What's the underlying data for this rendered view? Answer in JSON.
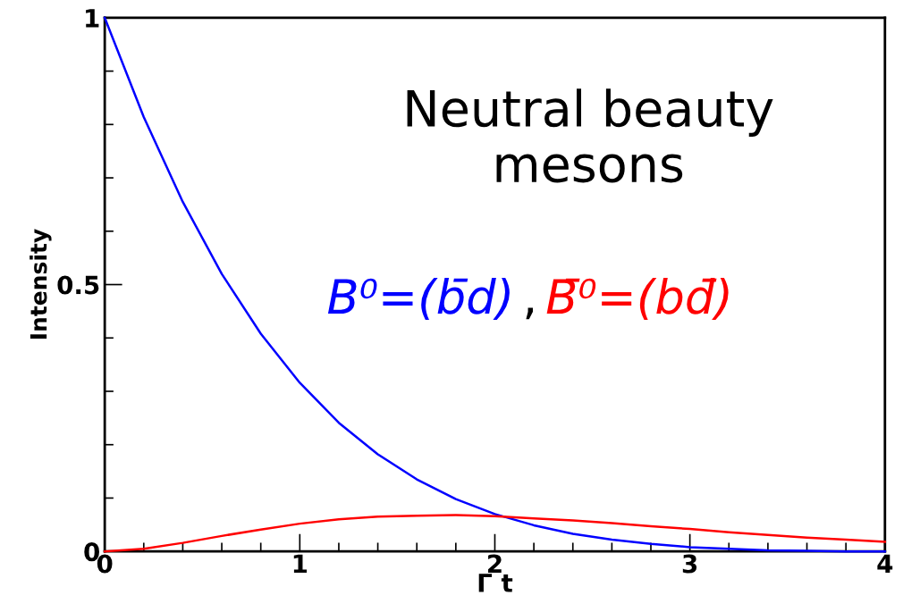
{
  "chart_data": {
    "type": "line",
    "x": [
      0,
      0.2,
      0.4,
      0.6,
      0.8,
      1,
      1.2,
      1.4,
      1.6,
      1.8,
      2,
      2.2,
      2.4,
      2.6,
      2.8,
      3,
      3.2,
      3.4,
      3.6,
      3.8,
      4
    ],
    "series": [
      {
        "name": "B⁰=(b̄d)",
        "color": "#0000ff",
        "values": [
          1,
          0.814,
          0.655,
          0.52,
          0.408,
          0.316,
          0.241,
          0.182,
          0.135,
          0.098,
          0.07,
          0.049,
          0.033,
          0.022,
          0.014,
          0.008,
          0.005,
          0.002,
          0.001,
          0,
          0
        ]
      },
      {
        "name": "B̄⁰=(bd̄)",
        "color": "#ff0000",
        "values": [
          0,
          0.005,
          0.016,
          0.029,
          0.041,
          0.052,
          0.06,
          0.065,
          0.067,
          0.068,
          0.066,
          0.062,
          0.058,
          0.053,
          0.047,
          0.042,
          0.036,
          0.031,
          0.026,
          0.022,
          0.018
        ]
      }
    ],
    "xlabel": "Γ t",
    "ylabel": "Intensity",
    "annotations": [
      "Neutral beauty\nmesons",
      ","
    ],
    "xlim": [
      0,
      4
    ],
    "ylim": [
      0,
      1
    ],
    "xticks": [
      0,
      {
        "value": 0.2,
        "label": null
      },
      {
        "value": 0.4,
        "label": null
      },
      {
        "value": 0.6,
        "label": null
      },
      {
        "value": 0.8,
        "label": null
      },
      1,
      {
        "value": 1.2,
        "label": null
      },
      {
        "value": 1.4,
        "label": null
      },
      {
        "value": 1.6,
        "label": null
      },
      {
        "value": 1.8,
        "label": null
      },
      2,
      {
        "value": 2.2,
        "label": null
      },
      {
        "value": 2.4,
        "label": null
      },
      {
        "value": 2.6,
        "label": null
      },
      {
        "value": 2.8,
        "label": null
      },
      3,
      {
        "value": 3.2,
        "label": null
      },
      {
        "value": 3.4,
        "label": null
      },
      {
        "value": 3.6,
        "label": null
      },
      {
        "value": 3.8,
        "label": null
      },
      4
    ],
    "yticks": [
      0,
      {
        "value": 0.1,
        "label": null
      },
      {
        "value": 0.2,
        "label": null
      },
      {
        "value": 0.3,
        "label": null
      },
      {
        "value": 0.4,
        "label": null
      },
      0.5,
      {
        "value": 0.6,
        "label": null
      },
      {
        "value": 0.7,
        "label": null
      },
      {
        "value": 0.8,
        "label": null
      },
      {
        "value": 0.9,
        "label": null
      },
      1
    ],
    "grid": false,
    "legend": false,
    "marker": "none",
    "line_style": "solid"
  }
}
